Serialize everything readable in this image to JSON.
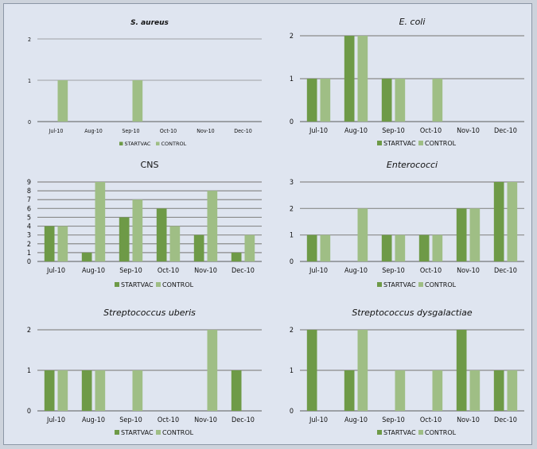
{
  "colors": {
    "startvac": "#6e9a47",
    "control": "#9fbe85",
    "grid": "#8a8a8a",
    "axis": "#5a5a5a"
  },
  "chart_data": [
    {
      "type": "bar",
      "title": "S. aureus",
      "title_style": "bold-italic",
      "categories": [
        "Jul-10",
        "Aug-10",
        "Sep-10",
        "Oct-10",
        "Nov-10",
        "Dec-10"
      ],
      "ylim": [
        0,
        2
      ],
      "yticks": [
        0,
        1,
        2
      ],
      "series": [
        {
          "name": "STARTVAC",
          "values": [
            0,
            0,
            0,
            0,
            0,
            0
          ]
        },
        {
          "name": "CONTROL",
          "values": [
            1,
            0,
            1,
            0,
            0,
            0
          ]
        }
      ],
      "legend": [
        "STARTVAC",
        "CONTROL"
      ],
      "legend_position": "bottom"
    },
    {
      "type": "bar",
      "title": "E. coli",
      "title_style": "italic",
      "categories": [
        "Jul-10",
        "Aug-10",
        "Sep-10",
        "Oct-10",
        "Nov-10",
        "Dec-10"
      ],
      "ylim": [
        0,
        2
      ],
      "yticks": [
        0,
        1,
        2
      ],
      "series": [
        {
          "name": "STARTVAC",
          "values": [
            1,
            2,
            1,
            0,
            0,
            0
          ]
        },
        {
          "name": "CONTROL",
          "values": [
            1,
            2,
            1,
            1,
            0,
            0
          ]
        }
      ],
      "legend": [
        "STARTVAC",
        "CONTROL"
      ],
      "legend_position": "bottom"
    },
    {
      "type": "bar",
      "title": "CNS",
      "title_style": "normal",
      "categories": [
        "Jul-10",
        "Aug-10",
        "Sep-10",
        "Oct-10",
        "Nov-10",
        "Dec-10"
      ],
      "ylim": [
        0,
        9
      ],
      "yticks": [
        0,
        1,
        2,
        3,
        4,
        5,
        6,
        7,
        8,
        9
      ],
      "series": [
        {
          "name": "STARTVAC",
          "values": [
            4,
            1,
            5,
            6,
            3,
            1
          ]
        },
        {
          "name": "CONTROL",
          "values": [
            4,
            9,
            7,
            4,
            8,
            3
          ]
        }
      ],
      "legend": [
        "STARTVAC",
        "CONTROL"
      ],
      "legend_position": "bottom"
    },
    {
      "type": "bar",
      "title": "Enterococci",
      "title_style": "italic",
      "categories": [
        "Jul-10",
        "Aug-10",
        "Sep-10",
        "Oct-10",
        "Nov-10",
        "Dec-10"
      ],
      "ylim": [
        0,
        3
      ],
      "yticks": [
        0,
        1,
        2,
        3
      ],
      "series": [
        {
          "name": "STARTVAC",
          "values": [
            1,
            0,
            1,
            1,
            2,
            3
          ]
        },
        {
          "name": "CONTROL",
          "values": [
            1,
            2,
            1,
            1,
            2,
            3
          ]
        }
      ],
      "legend": [
        "STARTVAC",
        "CONTROL"
      ],
      "legend_position": "bottom"
    },
    {
      "type": "bar",
      "title": "Streptococcus uberis",
      "title_style": "italic",
      "categories": [
        "Jul-10",
        "Aug-10",
        "Sep-10",
        "Oct-10",
        "Nov-10",
        "Dec-10"
      ],
      "ylim": [
        0,
        2
      ],
      "yticks": [
        0,
        1,
        2
      ],
      "series": [
        {
          "name": "STARTVAC",
          "values": [
            1,
            1,
            0,
            0,
            0,
            1
          ]
        },
        {
          "name": "CONTROL",
          "values": [
            1,
            1,
            1,
            0,
            2,
            0
          ]
        }
      ],
      "legend": [
        "STARTVAC",
        "CONTROL"
      ],
      "legend_position": "bottom"
    },
    {
      "type": "bar",
      "title": "Streptococcus dysgalactiae",
      "title_style": "italic",
      "categories": [
        "Jul-10",
        "Aug-10",
        "Sep-10",
        "Oct-10",
        "Nov-10",
        "Dec-10"
      ],
      "ylim": [
        0,
        2
      ],
      "yticks": [
        0,
        1,
        2
      ],
      "series": [
        {
          "name": "STARTVAC",
          "values": [
            2,
            1,
            0,
            0,
            2,
            1
          ]
        },
        {
          "name": "CONTROL",
          "values": [
            0,
            2,
            1,
            1,
            1,
            1
          ]
        }
      ],
      "legend": [
        "STARTVAC",
        "CONTROL"
      ],
      "legend_position": "bottom"
    }
  ]
}
